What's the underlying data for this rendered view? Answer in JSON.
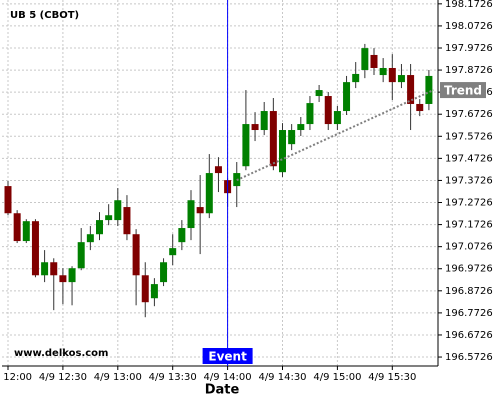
{
  "chart_data": {
    "type": "candlestick",
    "title": "UB 5 (CBOT)",
    "watermark": "www.delkos.com",
    "x_label": "Date",
    "categories": [
      "4/9 12:00",
      null,
      null,
      null,
      null,
      null,
      "4/9 12:30",
      null,
      null,
      null,
      null,
      null,
      "4/9 13:00",
      null,
      null,
      null,
      null,
      null,
      "4/9 13:30",
      null,
      null,
      null,
      null,
      null,
      "4/9 14:00",
      null,
      null,
      null,
      null,
      null,
      "4/9 14:30",
      null,
      null,
      null,
      null,
      null,
      "4/9 15:00",
      null,
      null,
      null,
      null,
      null,
      "4/9 15:30",
      null,
      null,
      null,
      null
    ],
    "open": [
      197.347,
      197.224,
      197.098,
      197.188,
      196.943,
      197.002,
      196.943,
      196.912,
      196.975,
      197.093,
      197.129,
      197.193,
      197.193,
      197.252,
      197.129,
      196.943,
      196.839,
      196.912,
      197.034,
      197.093,
      197.157,
      197.252,
      197.224,
      197.437,
      197.374,
      197.347,
      197.437,
      197.628,
      197.601,
      197.687,
      197.41,
      197.537,
      197.601,
      197.628,
      197.755,
      197.755,
      197.628,
      197.687,
      197.818,
      197.873,
      197.941,
      197.85,
      197.882,
      197.818,
      197.85,
      197.719,
      197.719
    ],
    "high": [
      197.37,
      197.238,
      197.197,
      197.197,
      197.057,
      197.02,
      196.975,
      196.984,
      197.157,
      197.166,
      197.229,
      197.265,
      197.338,
      197.306,
      197.152,
      197.002,
      196.93,
      197.02,
      197.129,
      197.193,
      197.329,
      197.397,
      197.492,
      197.478,
      197.383,
      197.456,
      197.782,
      197.682,
      197.728,
      197.746,
      197.632,
      197.628,
      197.66,
      197.755,
      197.805,
      197.773,
      197.71,
      197.846,
      197.909,
      197.991,
      197.972,
      197.927,
      197.945,
      197.9,
      197.9,
      197.741,
      197.873
    ],
    "low": [
      197.215,
      197.089,
      197.089,
      196.934,
      196.912,
      196.785,
      196.812,
      196.807,
      196.966,
      197.057,
      197.102,
      197.17,
      197.166,
      197.102,
      196.807,
      196.753,
      196.803,
      196.894,
      196.989,
      197.057,
      197.102,
      197.039,
      197.202,
      197.32,
      197.252,
      197.252,
      197.419,
      197.551,
      197.578,
      197.419,
      197.388,
      197.51,
      197.574,
      197.601,
      197.728,
      197.601,
      197.601,
      197.669,
      197.791,
      197.836,
      197.85,
      197.818,
      197.737,
      197.791,
      197.601,
      197.664,
      197.691
    ],
    "close": [
      197.224,
      197.098,
      197.188,
      196.943,
      197.002,
      196.943,
      196.912,
      196.975,
      197.093,
      197.129,
      197.193,
      197.215,
      197.283,
      197.129,
      196.943,
      196.821,
      196.903,
      197.002,
      197.066,
      197.157,
      197.283,
      197.224,
      197.406,
      197.406,
      197.315,
      197.406,
      197.628,
      197.601,
      197.687,
      197.437,
      197.601,
      197.601,
      197.628,
      197.723,
      197.782,
      197.628,
      197.687,
      197.818,
      197.855,
      197.972,
      197.882,
      197.882,
      197.818,
      197.85,
      197.719,
      197.687,
      197.846
    ],
    "up_color": "#008000",
    "down_color": "#800000",
    "ylim": [
      196.532,
      198.19
    ],
    "yticks": [
      196.5726,
      196.6726,
      196.7726,
      196.8726,
      196.9726,
      197.0726,
      197.1726,
      197.2726,
      197.3726,
      197.4726,
      197.5726,
      197.6726,
      197.7726,
      197.8726,
      197.9726,
      198.0726,
      198.1726
    ],
    "grid": true,
    "event": {
      "label": "Event",
      "x": 24,
      "color": "#0000ff"
    },
    "trend": {
      "label": "Trend",
      "x": [
        25,
        46.5
      ],
      "values": [
        197.374,
        197.782
      ],
      "color": "#808080"
    }
  }
}
